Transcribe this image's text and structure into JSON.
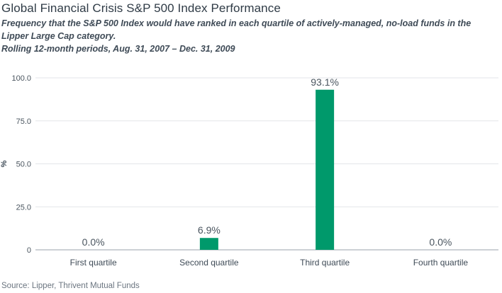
{
  "title": "Global Financial Crisis S&P 500 Index Performance",
  "subtitle": [
    "Frequency that the S&P 500 Index would have ranked in each quartile of actively-managed, no-load funds in the",
    "Lipper Large Cap category.",
    "Rolling 12-month periods, Aug. 31, 2007 – Dec. 31, 2009"
  ],
  "source": "Source: Lipper, Thrivent Mutual Funds",
  "chart_data": {
    "type": "bar",
    "categories": [
      "First quartile",
      "Second quartile",
      "Third quartile",
      "Fourth quartile"
    ],
    "values": [
      0.0,
      6.9,
      93.1,
      0.0
    ],
    "data_labels": [
      "0.0%",
      "6.9%",
      "93.1%",
      "0.0%"
    ],
    "ylabel": "%",
    "xlabel": "",
    "ylim": [
      0,
      100
    ],
    "yticks": [
      0,
      25,
      50,
      75,
      100
    ],
    "ytick_labels": [
      "0",
      "25.0",
      "50.0",
      "75.0",
      "100.0"
    ],
    "grid": true,
    "bar_color": "#00996b",
    "grid_color": "#e3e6e9"
  }
}
